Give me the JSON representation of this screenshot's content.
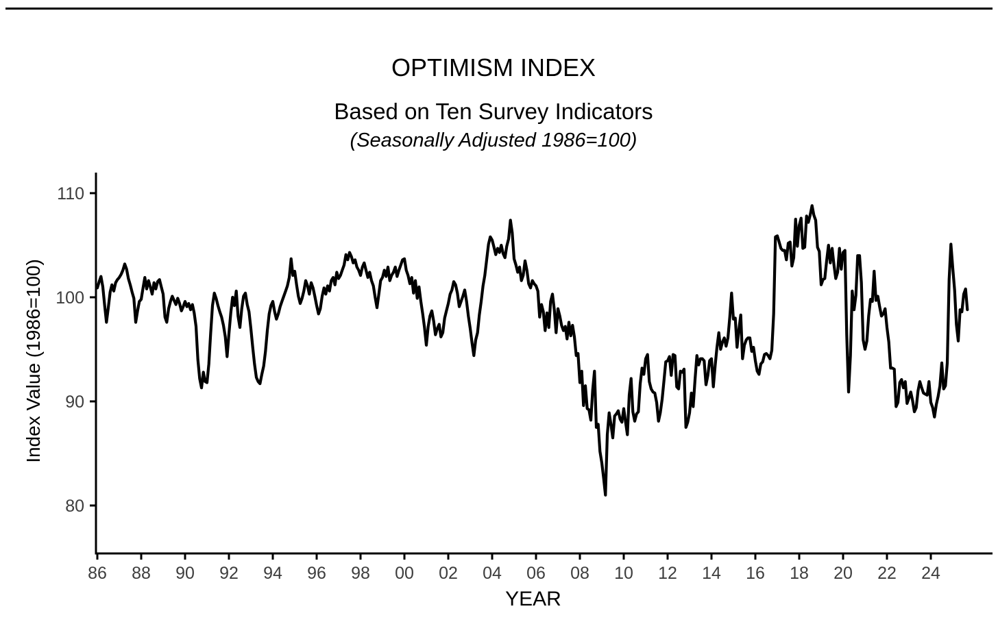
{
  "header": {
    "title": "OPTIMISM INDEX",
    "subtitle": "Based on Ten Survey Indicators",
    "caption": "(Seasonally Adjusted 1986=100)"
  },
  "chart_data": {
    "type": "line",
    "title": "OPTIMISM INDEX",
    "subtitle": "Based on Ten Survey Indicators",
    "note": "(Seasonally Adjusted 1986=100)",
    "xlabel": "YEAR",
    "ylabel": "Index Value (1986=100)",
    "x_tick_labels": [
      "86",
      "88",
      "90",
      "92",
      "94",
      "96",
      "98",
      "00",
      "02",
      "04",
      "06",
      "08",
      "10",
      "12",
      "14",
      "16",
      "18",
      "20",
      "22",
      "24"
    ],
    "x_tick_years": [
      1986,
      1988,
      1990,
      1992,
      1994,
      1996,
      1998,
      2000,
      2002,
      2004,
      2006,
      2008,
      2010,
      2012,
      2014,
      2016,
      2018,
      2020,
      2022,
      2024
    ],
    "y_ticks": [
      80,
      90,
      100,
      110
    ],
    "ylim": [
      75,
      112
    ],
    "xlim": [
      1986,
      2026.8
    ],
    "grid": false,
    "legend": false,
    "line_color": "#000000",
    "series": [
      {
        "start_year": 1986,
        "start_month": 1,
        "frequency": "monthly",
        "end_label": "2025-09",
        "values": [
          100.9,
          101.5,
          102.0,
          101.0,
          99.2,
          97.6,
          99.0,
          100.5,
          101.2,
          100.6,
          101.4,
          101.7,
          101.9,
          102.2,
          102.6,
          103.2,
          102.7,
          101.8,
          101.2,
          100.5,
          99.9,
          97.6,
          98.7,
          99.6,
          99.8,
          100.9,
          101.9,
          100.8,
          101.6,
          101.0,
          100.3,
          101.4,
          100.8,
          101.5,
          101.7,
          101.0,
          100.3,
          98.1,
          97.6,
          98.9,
          99.6,
          100.1,
          99.7,
          99.3,
          99.9,
          99.4,
          98.7,
          99.1,
          99.6,
          99.1,
          99.4,
          98.8,
          99.3,
          98.5,
          97.2,
          94.0,
          92.2,
          91.3,
          92.8,
          91.9,
          91.8,
          93.6,
          96.5,
          99.2,
          100.4,
          99.9,
          99.2,
          98.6,
          98.1,
          97.3,
          96.2,
          94.3,
          96.5,
          98.5,
          100.0,
          99.2,
          100.6,
          98.2,
          97.1,
          98.9,
          100.1,
          100.4,
          99.3,
          98.6,
          97.0,
          95.2,
          93.6,
          92.3,
          91.9,
          91.7,
          92.6,
          93.4,
          94.8,
          96.8,
          98.4,
          99.2,
          99.6,
          98.6,
          97.9,
          98.4,
          99.1,
          99.6,
          100.1,
          100.6,
          101.1,
          101.9,
          103.7,
          102.1,
          102.5,
          101.2,
          100.1,
          99.4,
          99.9,
          100.6,
          101.6,
          101.1,
          100.3,
          101.4,
          100.9,
          100.1,
          99.2,
          98.4,
          98.9,
          100.1,
          100.9,
          100.3,
          101.1,
          100.6,
          101.6,
          101.9,
          101.2,
          102.4,
          101.8,
          102.1,
          102.6,
          103.1,
          104.1,
          103.6,
          104.3,
          103.9,
          103.3,
          103.6,
          102.9,
          102.6,
          102.1,
          102.9,
          103.3,
          102.6,
          101.9,
          102.4,
          101.6,
          101.1,
          100.0,
          99.0,
          100.3,
          101.6,
          101.9,
          102.6,
          102.0,
          102.9,
          101.6,
          102.1,
          102.4,
          102.9,
          102.0,
          102.6,
          103.1,
          103.6,
          103.7,
          102.6,
          102.1,
          101.3,
          101.9,
          100.4,
          101.6,
          99.9,
          101.0,
          99.6,
          98.4,
          97.1,
          95.4,
          97.2,
          98.2,
          98.7,
          97.7,
          96.4,
          97.0,
          97.4,
          96.2,
          96.6,
          98.0,
          98.7,
          99.4,
          100.3,
          100.7,
          101.5,
          101.2,
          100.4,
          99.1,
          99.6,
          100.1,
          100.7,
          99.6,
          98.2,
          97.0,
          95.6,
          94.4,
          95.9,
          96.6,
          98.3,
          99.6,
          101.1,
          102.1,
          103.6,
          105.1,
          105.8,
          105.5,
          104.8,
          104.1,
          104.7,
          104.3,
          105.0,
          104.2,
          103.8,
          104.9,
          105.6,
          107.4,
          106.2,
          103.7,
          103.1,
          102.4,
          102.9,
          101.6,
          102.1,
          103.5,
          102.6,
          101.3,
          100.9,
          101.6,
          101.3,
          101.1,
          100.6,
          98.1,
          99.3,
          98.6,
          96.8,
          98.5,
          97.1,
          99.6,
          100.3,
          98.8,
          96.6,
          98.9,
          98.2,
          97.3,
          96.8,
          97.2,
          96.0,
          97.6,
          96.3,
          97.3,
          96.2,
          94.4,
          94.6,
          91.8,
          92.9,
          89.6,
          91.5,
          89.3,
          89.2,
          88.2,
          91.1,
          92.9,
          87.5,
          87.8,
          85.2,
          84.1,
          82.6,
          81.0,
          86.8,
          88.9,
          87.8,
          86.5,
          88.6,
          88.8,
          89.1,
          88.3,
          88.0,
          89.3,
          88.0,
          86.8,
          90.6,
          92.2,
          89.0,
          88.1,
          88.8,
          89.0,
          91.7,
          93.2,
          92.6,
          94.1,
          94.5,
          91.9,
          91.2,
          90.9,
          90.8,
          89.9,
          88.1,
          88.9,
          90.2,
          92.0,
          93.8,
          93.9,
          94.3,
          92.5,
          94.5,
          94.4,
          91.4,
          91.2,
          92.9,
          92.8,
          93.1,
          87.5,
          88.0,
          88.9,
          90.8,
          89.5,
          92.1,
          94.4,
          93.5,
          94.1,
          94.1,
          93.9,
          91.6,
          92.5,
          93.9,
          94.1,
          91.4,
          93.4,
          95.2,
          96.6,
          95.0,
          95.7,
          96.1,
          95.3,
          96.1,
          98.1,
          100.4,
          97.9,
          98.0,
          95.2,
          96.9,
          98.3,
          94.1,
          95.4,
          95.9,
          96.1,
          96.1,
          94.8,
          95.2,
          93.9,
          92.9,
          92.6,
          93.6,
          93.8,
          94.5,
          94.6,
          94.4,
          94.1,
          94.9,
          98.4,
          105.8,
          105.9,
          105.3,
          104.7,
          104.5,
          104.5,
          103.6,
          105.2,
          105.3,
          103.0,
          103.8,
          107.5,
          104.9,
          106.9,
          107.6,
          104.7,
          104.8,
          107.8,
          107.2,
          107.9,
          108.8,
          107.9,
          107.4,
          104.8,
          104.4,
          101.2,
          101.7,
          101.8,
          103.5,
          105.0,
          103.3,
          104.7,
          103.1,
          101.8,
          102.4,
          104.7,
          102.7,
          104.3,
          104.5,
          96.4,
          90.9,
          94.4,
          100.6,
          98.8,
          100.2,
          104.0,
          104.0,
          101.4,
          95.9,
          95.0,
          95.8,
          98.2,
          99.8,
          99.6,
          102.5,
          99.7,
          100.1,
          99.1,
          98.2,
          98.4,
          98.9,
          97.1,
          95.7,
          93.2,
          93.2,
          93.1,
          89.5,
          89.9,
          91.8,
          92.1,
          91.3,
          91.9,
          89.8,
          90.3,
          90.9,
          90.1,
          89.0,
          89.4,
          91.0,
          91.9,
          91.3,
          90.8,
          90.7,
          90.6,
          91.9,
          89.9,
          89.4,
          88.5,
          89.7,
          90.5,
          91.5,
          93.7,
          91.2,
          91.5,
          93.7,
          101.7,
          105.1,
          102.8,
          100.7,
          97.4,
          95.8,
          98.8,
          98.6,
          100.3,
          100.8,
          98.8
        ]
      }
    ]
  }
}
